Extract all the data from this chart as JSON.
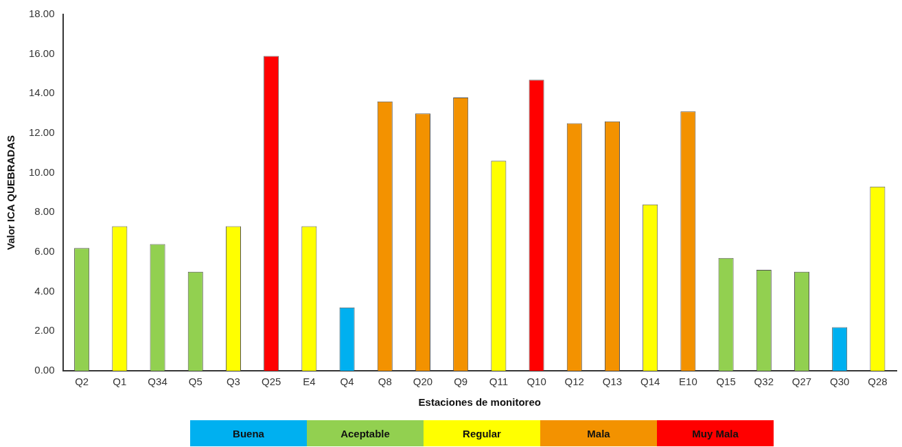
{
  "chart_data": {
    "type": "bar",
    "xlabel": "Estaciones de monitoreo",
    "ylabel": "Valor ICA QUEBRADAS",
    "categories": [
      "Q2",
      "Q1",
      "Q34",
      "Q5",
      "Q3",
      "Q25",
      "E4",
      "Q4",
      "Q8",
      "Q20",
      "Q9",
      "Q11",
      "Q10",
      "Q12",
      "Q13",
      "Q14",
      "E10",
      "Q15",
      "Q32",
      "Q27",
      "Q30",
      "Q28"
    ],
    "series": [
      {
        "name": "Buena",
        "color": "#00b0f0",
        "values": [
          null,
          null,
          null,
          null,
          null,
          null,
          null,
          3.2,
          null,
          null,
          null,
          null,
          null,
          null,
          null,
          null,
          null,
          null,
          null,
          null,
          2.2,
          null
        ]
      },
      {
        "name": "Aceptable",
        "color": "#92d050",
        "values": [
          6.2,
          null,
          6.4,
          5.0,
          null,
          null,
          null,
          null,
          null,
          null,
          null,
          null,
          null,
          null,
          null,
          null,
          null,
          5.7,
          5.1,
          5.0,
          null,
          null
        ]
      },
      {
        "name": "Regular",
        "color": "#ffff00",
        "values": [
          null,
          7.3,
          null,
          null,
          7.3,
          null,
          7.3,
          null,
          null,
          null,
          null,
          10.6,
          null,
          null,
          null,
          8.4,
          null,
          null,
          null,
          null,
          null,
          9.3
        ]
      },
      {
        "name": "Mala",
        "color": "#f39200",
        "values": [
          null,
          null,
          null,
          null,
          null,
          null,
          null,
          null,
          13.6,
          13.0,
          13.8,
          null,
          null,
          12.5,
          12.6,
          null,
          13.1,
          null,
          null,
          null,
          null,
          null
        ]
      },
      {
        "name": "Muy Mala",
        "color": "#ff0000",
        "values": [
          null,
          null,
          null,
          null,
          null,
          15.9,
          null,
          null,
          null,
          null,
          null,
          null,
          14.7,
          null,
          null,
          null,
          null,
          null,
          null,
          null,
          null,
          null
        ]
      }
    ],
    "ylim": [
      0,
      18
    ],
    "yticks": [
      {
        "value": 0,
        "label": "0.00"
      },
      {
        "value": 2,
        "label": "2.00"
      },
      {
        "value": 4,
        "label": "4.00"
      },
      {
        "value": 6,
        "label": "6.00"
      },
      {
        "value": 8,
        "label": "8.00"
      },
      {
        "value": 10,
        "label": "10.00"
      },
      {
        "value": 12,
        "label": "12.00"
      },
      {
        "value": 14,
        "label": "14.00"
      },
      {
        "value": 16,
        "label": "16.00"
      },
      {
        "value": 18,
        "label": "18.00"
      }
    ],
    "grid": false,
    "legend": "bottom"
  }
}
